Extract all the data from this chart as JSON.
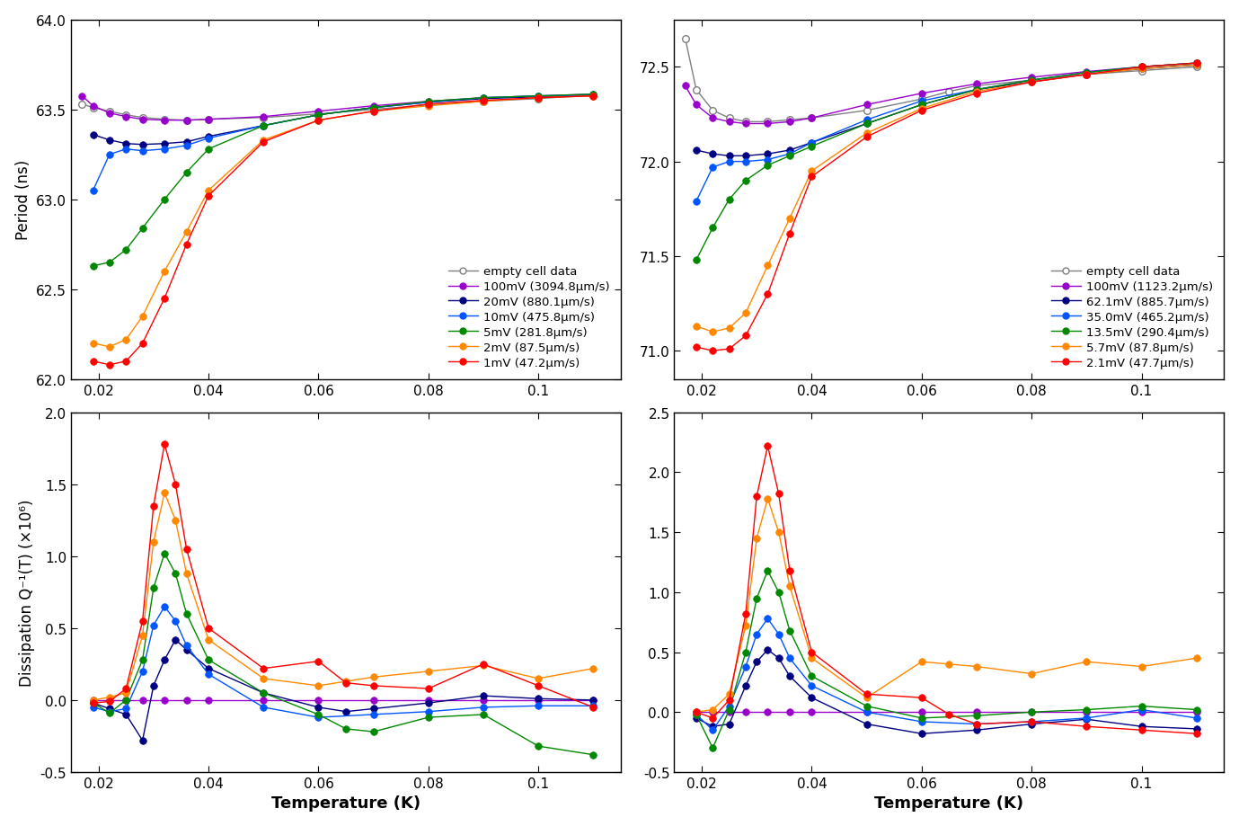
{
  "panel_TL": {
    "ylim": [
      62.0,
      64.0
    ],
    "yticks": [
      62.0,
      62.5,
      63.0,
      63.5,
      64.0
    ],
    "xlim": [
      0.015,
      0.115
    ],
    "xticks": [
      0.02,
      0.04,
      0.06,
      0.08,
      0.1
    ],
    "legend_labels": [
      "empty cell data",
      "100mV (3094.8μm/s)",
      "20mV (880.1μm/s)",
      "10mV (475.8μm/s)",
      "5mV (281.8μm/s)",
      "2mV (87.5μm/s)",
      "1mV (47.2μm/s)"
    ],
    "series": [
      {
        "color": "gray",
        "filled": false,
        "x": [
          0.017,
          0.019,
          0.022,
          0.025,
          0.028,
          0.032,
          0.036,
          0.04,
          0.05,
          0.06,
          0.07,
          0.08,
          0.09,
          0.1,
          0.11
        ],
        "y": [
          63.53,
          63.51,
          63.49,
          63.47,
          63.455,
          63.445,
          63.44,
          63.445,
          63.455,
          63.475,
          63.5,
          63.525,
          63.545,
          63.56,
          63.58
        ]
      },
      {
        "color": "#9900cc",
        "filled": true,
        "x": [
          0.017,
          0.019,
          0.022,
          0.025,
          0.028,
          0.032,
          0.036,
          0.04,
          0.05,
          0.06,
          0.07,
          0.08,
          0.09,
          0.1,
          0.11
        ],
        "y": [
          63.575,
          63.52,
          63.48,
          63.46,
          63.445,
          63.44,
          63.44,
          63.445,
          63.46,
          63.49,
          63.52,
          63.545,
          63.565,
          63.575,
          63.585
        ]
      },
      {
        "color": "#000080",
        "filled": true,
        "x": [
          0.019,
          0.022,
          0.025,
          0.028,
          0.032,
          0.036,
          0.04,
          0.05,
          0.06,
          0.07,
          0.08,
          0.09,
          0.1,
          0.11
        ],
        "y": [
          63.36,
          63.33,
          63.31,
          63.305,
          63.31,
          63.32,
          63.35,
          63.41,
          63.47,
          63.51,
          63.54,
          63.56,
          63.57,
          63.58
        ]
      },
      {
        "color": "#0055ff",
        "filled": true,
        "x": [
          0.019,
          0.022,
          0.025,
          0.028,
          0.032,
          0.036,
          0.04,
          0.05,
          0.06,
          0.07,
          0.08,
          0.09,
          0.1,
          0.11
        ],
        "y": [
          63.05,
          63.25,
          63.28,
          63.27,
          63.28,
          63.3,
          63.34,
          63.41,
          63.47,
          63.51,
          63.54,
          63.565,
          63.575,
          63.58
        ]
      },
      {
        "color": "#008800",
        "filled": true,
        "x": [
          0.019,
          0.022,
          0.025,
          0.028,
          0.032,
          0.036,
          0.04,
          0.05,
          0.06,
          0.07,
          0.08,
          0.09,
          0.1,
          0.11
        ],
        "y": [
          62.63,
          62.65,
          62.72,
          62.84,
          63.0,
          63.15,
          63.28,
          63.41,
          63.47,
          63.51,
          63.545,
          63.565,
          63.575,
          63.585
        ]
      },
      {
        "color": "#ff8800",
        "filled": true,
        "x": [
          0.019,
          0.022,
          0.025,
          0.028,
          0.032,
          0.036,
          0.04,
          0.05,
          0.06,
          0.07,
          0.08,
          0.09,
          0.1,
          0.11
        ],
        "y": [
          62.2,
          62.18,
          62.22,
          62.35,
          62.6,
          62.82,
          63.05,
          63.33,
          63.44,
          63.49,
          63.52,
          63.545,
          63.565,
          63.575
        ]
      },
      {
        "color": "#ff0000",
        "filled": true,
        "x": [
          0.019,
          0.022,
          0.025,
          0.028,
          0.032,
          0.036,
          0.04,
          0.05,
          0.06,
          0.07,
          0.08,
          0.09,
          0.1,
          0.11
        ],
        "y": [
          62.1,
          62.08,
          62.1,
          62.2,
          62.45,
          62.75,
          63.02,
          63.32,
          63.44,
          63.49,
          63.53,
          63.55,
          63.565,
          63.575
        ]
      }
    ]
  },
  "panel_TR": {
    "ylim": [
      70.85,
      72.75
    ],
    "yticks": [
      71.0,
      71.5,
      72.0,
      72.5
    ],
    "xlim": [
      0.015,
      0.115
    ],
    "xticks": [
      0.02,
      0.04,
      0.06,
      0.08,
      0.1
    ],
    "legend_labels": [
      "empty cell data",
      "100mV (1123.2μm/s)",
      "62.1mV (885.7μm/s)",
      "35.0mV (465.2μm/s)",
      "13.5mV (290.4μm/s)",
      "5.7mV (87.8μm/s)",
      "2.1mV (47.7μm/s)"
    ],
    "series": [
      {
        "color": "gray",
        "filled": false,
        "x": [
          0.017,
          0.019,
          0.022,
          0.025,
          0.028,
          0.032,
          0.036,
          0.04,
          0.05,
          0.06,
          0.065,
          0.07,
          0.08,
          0.09,
          0.1,
          0.11
        ],
        "y": [
          72.65,
          72.38,
          72.27,
          72.23,
          72.21,
          72.21,
          72.22,
          72.23,
          72.27,
          72.33,
          72.37,
          72.4,
          72.43,
          72.46,
          72.48,
          72.5
        ]
      },
      {
        "color": "#9900cc",
        "filled": true,
        "x": [
          0.017,
          0.019,
          0.022,
          0.025,
          0.028,
          0.032,
          0.036,
          0.04,
          0.05,
          0.06,
          0.07,
          0.08,
          0.09,
          0.1,
          0.11
        ],
        "y": [
          72.4,
          72.3,
          72.23,
          72.21,
          72.2,
          72.2,
          72.21,
          72.23,
          72.3,
          72.36,
          72.41,
          72.445,
          72.475,
          72.5,
          72.52
        ]
      },
      {
        "color": "#000080",
        "filled": true,
        "x": [
          0.019,
          0.022,
          0.025,
          0.028,
          0.032,
          0.036,
          0.04,
          0.05,
          0.06,
          0.07,
          0.08,
          0.09,
          0.1,
          0.11
        ],
        "y": [
          72.06,
          72.04,
          72.03,
          72.03,
          72.04,
          72.06,
          72.1,
          72.2,
          72.3,
          72.38,
          72.42,
          72.46,
          72.49,
          72.51
        ]
      },
      {
        "color": "#0055ff",
        "filled": true,
        "x": [
          0.019,
          0.022,
          0.025,
          0.028,
          0.032,
          0.036,
          0.04,
          0.05,
          0.06,
          0.07,
          0.08,
          0.09,
          0.1,
          0.11
        ],
        "y": [
          71.79,
          71.97,
          72.0,
          72.0,
          72.01,
          72.04,
          72.1,
          72.22,
          72.32,
          72.38,
          72.43,
          72.47,
          72.5,
          72.52
        ]
      },
      {
        "color": "#008800",
        "filled": true,
        "x": [
          0.019,
          0.022,
          0.025,
          0.028,
          0.032,
          0.036,
          0.04,
          0.05,
          0.06,
          0.07,
          0.08,
          0.09,
          0.1,
          0.11
        ],
        "y": [
          71.48,
          71.65,
          71.8,
          71.9,
          71.98,
          72.03,
          72.08,
          72.2,
          72.3,
          72.38,
          72.43,
          72.47,
          72.5,
          72.52
        ]
      },
      {
        "color": "#ff8800",
        "filled": true,
        "x": [
          0.019,
          0.022,
          0.025,
          0.028,
          0.032,
          0.036,
          0.04,
          0.05,
          0.06,
          0.07,
          0.08,
          0.09,
          0.1,
          0.11
        ],
        "y": [
          71.13,
          71.1,
          71.12,
          71.2,
          71.45,
          71.7,
          71.95,
          72.15,
          72.28,
          72.37,
          72.42,
          72.46,
          72.49,
          72.51
        ]
      },
      {
        "color": "#ff0000",
        "filled": true,
        "x": [
          0.019,
          0.022,
          0.025,
          0.028,
          0.032,
          0.036,
          0.04,
          0.05,
          0.06,
          0.07,
          0.08,
          0.09,
          0.1,
          0.11
        ],
        "y": [
          71.02,
          71.0,
          71.01,
          71.08,
          71.3,
          71.62,
          71.92,
          72.13,
          72.27,
          72.36,
          72.42,
          72.46,
          72.5,
          72.52
        ]
      }
    ]
  },
  "panel_BL": {
    "ylim": [
      -0.5,
      2.0
    ],
    "yticks": [
      -0.5,
      0.0,
      0.5,
      1.0,
      1.5,
      2.0
    ],
    "xlim": [
      0.015,
      0.115
    ],
    "xticks": [
      0.02,
      0.04,
      0.06,
      0.08,
      0.1
    ],
    "series": [
      {
        "color": "#9900cc",
        "filled": true,
        "x": [
          0.019,
          0.022,
          0.025,
          0.028,
          0.032,
          0.036,
          0.04,
          0.05,
          0.06,
          0.07,
          0.08,
          0.09,
          0.1,
          0.11
        ],
        "y": [
          0.0,
          0.0,
          0.0,
          0.0,
          0.0,
          0.0,
          0.0,
          0.0,
          0.0,
          0.0,
          0.0,
          0.0,
          0.0,
          0.0
        ]
      },
      {
        "color": "#000080",
        "filled": true,
        "x": [
          0.019,
          0.022,
          0.025,
          0.028,
          0.03,
          0.032,
          0.034,
          0.036,
          0.04,
          0.05,
          0.06,
          0.065,
          0.07,
          0.08,
          0.09,
          0.1,
          0.11
        ],
        "y": [
          -0.02,
          -0.06,
          -0.1,
          -0.28,
          0.1,
          0.28,
          0.42,
          0.35,
          0.22,
          0.05,
          -0.05,
          -0.08,
          -0.06,
          -0.02,
          0.03,
          0.01,
          0.0
        ]
      },
      {
        "color": "#0055ff",
        "filled": true,
        "x": [
          0.019,
          0.022,
          0.025,
          0.028,
          0.03,
          0.032,
          0.034,
          0.036,
          0.04,
          0.05,
          0.06,
          0.07,
          0.08,
          0.09,
          0.1,
          0.11
        ],
        "y": [
          -0.05,
          -0.08,
          -0.06,
          0.2,
          0.52,
          0.65,
          0.55,
          0.38,
          0.18,
          -0.05,
          -0.12,
          -0.1,
          -0.08,
          -0.05,
          -0.04,
          -0.04
        ]
      },
      {
        "color": "#008800",
        "filled": true,
        "x": [
          0.019,
          0.022,
          0.025,
          0.028,
          0.03,
          0.032,
          0.034,
          0.036,
          0.04,
          0.05,
          0.06,
          0.065,
          0.07,
          0.08,
          0.09,
          0.1,
          0.11
        ],
        "y": [
          -0.02,
          -0.09,
          0.0,
          0.28,
          0.78,
          1.02,
          0.88,
          0.6,
          0.28,
          0.05,
          -0.1,
          -0.2,
          -0.22,
          -0.12,
          -0.1,
          -0.32,
          -0.38
        ]
      },
      {
        "color": "#ff8800",
        "filled": true,
        "x": [
          0.019,
          0.022,
          0.025,
          0.028,
          0.03,
          0.032,
          0.034,
          0.036,
          0.04,
          0.05,
          0.06,
          0.065,
          0.07,
          0.08,
          0.09,
          0.1,
          0.11
        ],
        "y": [
          0.0,
          0.02,
          0.05,
          0.45,
          1.1,
          1.44,
          1.25,
          0.88,
          0.42,
          0.15,
          0.1,
          0.13,
          0.16,
          0.2,
          0.24,
          0.15,
          0.22
        ]
      },
      {
        "color": "#ff0000",
        "filled": true,
        "x": [
          0.019,
          0.022,
          0.025,
          0.028,
          0.03,
          0.032,
          0.034,
          0.036,
          0.04,
          0.05,
          0.06,
          0.065,
          0.07,
          0.08,
          0.09,
          0.1,
          0.11
        ],
        "y": [
          -0.02,
          -0.01,
          0.08,
          0.55,
          1.35,
          1.78,
          1.5,
          1.05,
          0.5,
          0.22,
          0.27,
          0.12,
          0.1,
          0.08,
          0.25,
          0.1,
          -0.05
        ]
      }
    ]
  },
  "panel_BR": {
    "ylim": [
      -0.5,
      2.5
    ],
    "yticks": [
      -0.5,
      0.0,
      0.5,
      1.0,
      1.5,
      2.0,
      2.5
    ],
    "xlim": [
      0.015,
      0.115
    ],
    "xticks": [
      0.02,
      0.04,
      0.06,
      0.08,
      0.1
    ],
    "series": [
      {
        "color": "#9900cc",
        "filled": true,
        "x": [
          0.019,
          0.022,
          0.025,
          0.028,
          0.032,
          0.036,
          0.04,
          0.05,
          0.06,
          0.07,
          0.08,
          0.09,
          0.1,
          0.11
        ],
        "y": [
          0.0,
          0.0,
          0.0,
          0.0,
          0.0,
          0.0,
          0.0,
          0.0,
          0.0,
          0.0,
          0.0,
          0.0,
          0.0,
          0.0
        ]
      },
      {
        "color": "#000080",
        "filled": true,
        "x": [
          0.019,
          0.022,
          0.025,
          0.028,
          0.03,
          0.032,
          0.034,
          0.036,
          0.04,
          0.05,
          0.06,
          0.07,
          0.08,
          0.09,
          0.1,
          0.11
        ],
        "y": [
          -0.05,
          -0.12,
          -0.1,
          0.22,
          0.42,
          0.52,
          0.45,
          0.3,
          0.12,
          -0.1,
          -0.18,
          -0.15,
          -0.1,
          -0.06,
          -0.12,
          -0.14
        ]
      },
      {
        "color": "#0055ff",
        "filled": true,
        "x": [
          0.019,
          0.022,
          0.025,
          0.028,
          0.03,
          0.032,
          0.034,
          0.036,
          0.04,
          0.05,
          0.06,
          0.07,
          0.08,
          0.09,
          0.1,
          0.11
        ],
        "y": [
          -0.02,
          -0.15,
          0.05,
          0.38,
          0.65,
          0.78,
          0.65,
          0.45,
          0.22,
          0.0,
          -0.08,
          -0.1,
          -0.08,
          -0.05,
          0.02,
          -0.05
        ]
      },
      {
        "color": "#008800",
        "filled": true,
        "x": [
          0.019,
          0.022,
          0.025,
          0.028,
          0.03,
          0.032,
          0.034,
          0.036,
          0.04,
          0.05,
          0.06,
          0.07,
          0.08,
          0.09,
          0.1,
          0.11
        ],
        "y": [
          -0.02,
          -0.3,
          0.02,
          0.5,
          0.95,
          1.18,
          1.0,
          0.68,
          0.3,
          0.05,
          -0.05,
          -0.03,
          0.0,
          0.02,
          0.05,
          0.02
        ]
      },
      {
        "color": "#ff8800",
        "filled": true,
        "x": [
          0.019,
          0.022,
          0.025,
          0.028,
          0.03,
          0.032,
          0.034,
          0.036,
          0.04,
          0.05,
          0.06,
          0.065,
          0.07,
          0.08,
          0.09,
          0.1,
          0.11
        ],
        "y": [
          0.0,
          0.02,
          0.15,
          0.72,
          1.45,
          1.78,
          1.5,
          1.05,
          0.45,
          0.12,
          0.42,
          0.4,
          0.38,
          0.32,
          0.42,
          0.38,
          0.45
        ]
      },
      {
        "color": "#ff0000",
        "filled": true,
        "x": [
          0.019,
          0.022,
          0.025,
          0.028,
          0.03,
          0.032,
          0.034,
          0.036,
          0.04,
          0.05,
          0.06,
          0.065,
          0.07,
          0.08,
          0.09,
          0.1,
          0.11
        ],
        "y": [
          0.0,
          -0.05,
          0.1,
          0.82,
          1.8,
          2.22,
          1.82,
          1.18,
          0.5,
          0.15,
          0.12,
          -0.02,
          -0.1,
          -0.08,
          -0.12,
          -0.15,
          -0.18
        ]
      }
    ]
  }
}
